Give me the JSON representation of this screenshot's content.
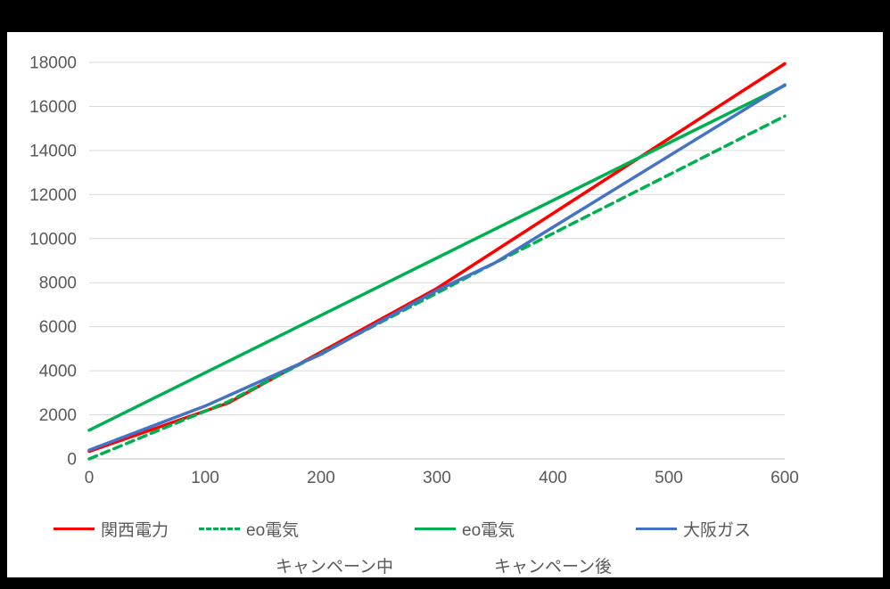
{
  "chart_data": {
    "type": "line",
    "title": "",
    "xlabel": "",
    "ylabel": "",
    "xlim": [
      0,
      600
    ],
    "ylim": [
      0,
      18000
    ],
    "x_ticks": [
      0,
      100,
      200,
      300,
      400,
      500,
      600
    ],
    "y_ticks": [
      0,
      2000,
      4000,
      6000,
      8000,
      10000,
      12000,
      14000,
      16000,
      18000
    ],
    "grid": "horizontal",
    "legend_position": "bottom",
    "colors": {
      "red": "#ff0000",
      "green": "#00b050",
      "blue": "#4472c4",
      "text": "#595959",
      "gridline": "#d9d9d9",
      "axis": "#bfbfbf"
    },
    "series": [
      {
        "name": "関西電力",
        "color": "#ff0000",
        "style": "solid",
        "points": [
          [
            0,
            340
          ],
          [
            120,
            2540
          ],
          [
            300,
            7740
          ],
          [
            600,
            17940
          ]
        ]
      },
      {
        "name": "eo電気",
        "sublabel": "キャンペーン中",
        "color": "#00b050",
        "style": "dashed",
        "points": [
          [
            0,
            0
          ],
          [
            120,
            2600
          ],
          [
            350,
            8900
          ],
          [
            600,
            15560
          ]
        ]
      },
      {
        "name": "eo電気",
        "sublabel": "キャンペーン後",
        "color": "#00b050",
        "style": "solid",
        "points": [
          [
            0,
            1300
          ],
          [
            600,
            16950
          ]
        ]
      },
      {
        "name": "大阪ガス",
        "color": "#4472c4",
        "style": "solid",
        "points": [
          [
            0,
            400
          ],
          [
            100,
            2400
          ],
          [
            200,
            4750
          ],
          [
            300,
            7650
          ],
          [
            350,
            8900
          ],
          [
            600,
            16980
          ]
        ]
      }
    ],
    "legend": {
      "items": [
        {
          "label": "関西電力",
          "color": "#ff0000",
          "style": "solid",
          "left": 52
        },
        {
          "label": "eo電気",
          "color": "#00b050",
          "style": "dashed",
          "left": 215
        },
        {
          "label": "eo電気",
          "color": "#00b050",
          "style": "solid",
          "left": 457
        },
        {
          "label": "大阪ガス",
          "color": "#4472c4",
          "style": "solid",
          "left": 705
        }
      ],
      "sublabels": [
        {
          "text": "キャンペーン中",
          "center_x": 367
        },
        {
          "text": "キャンペーン後",
          "center_x": 612
        }
      ]
    }
  }
}
